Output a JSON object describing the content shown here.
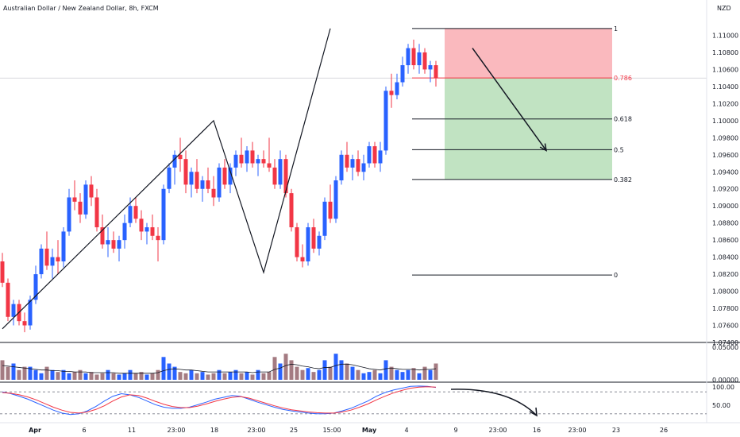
{
  "header": {
    "title": "Australian Dollar / New Zealand Dollar, 8h, FXCM"
  },
  "chart_data": [
    {
      "type": "candlestick",
      "title": "Australian Dollar / New Zealand Dollar, 8h, FXCM",
      "y_unit": "NZD",
      "ylim": [
        1.074,
        1.113
      ],
      "yticks": [
        "1.11000",
        "1.10800",
        "1.10600",
        "1.10400",
        "1.10200",
        "1.10000",
        "1.09800",
        "1.09600",
        "1.09400",
        "1.09200",
        "1.09000",
        "1.08800",
        "1.08600",
        "1.08400",
        "1.08200",
        "1.08000",
        "1.07800",
        "1.07600",
        "1.07400"
      ],
      "xticks": [
        "Apr",
        "6",
        "11",
        "23:00",
        "18",
        "23:00",
        "25",
        "15:00",
        "May",
        "4",
        "9",
        "23:00",
        "16",
        "23:00",
        "23",
        "26"
      ],
      "candles": [
        [
          1.0835,
          1.0845,
          1.0805,
          1.081
        ],
        [
          1.081,
          1.0815,
          1.0765,
          1.077
        ],
        [
          1.077,
          1.079,
          1.076,
          1.0785
        ],
        [
          1.0785,
          1.079,
          1.076,
          1.0765
        ],
        [
          1.0765,
          1.0775,
          1.0752,
          1.076
        ],
        [
          1.076,
          1.0795,
          1.0755,
          1.079
        ],
        [
          1.079,
          1.083,
          1.0785,
          1.082
        ],
        [
          1.082,
          1.0855,
          1.0815,
          1.085
        ],
        [
          1.085,
          1.087,
          1.0825,
          1.083
        ],
        [
          1.083,
          1.085,
          1.0815,
          1.084
        ],
        [
          1.084,
          1.086,
          1.082,
          1.0835
        ],
        [
          1.0835,
          1.0875,
          1.0828,
          1.087
        ],
        [
          1.087,
          1.092,
          1.0865,
          1.091
        ],
        [
          1.091,
          1.093,
          1.0895,
          1.0905
        ],
        [
          1.0905,
          1.0915,
          1.088,
          1.089
        ],
        [
          1.089,
          1.093,
          1.0885,
          1.0925
        ],
        [
          1.0925,
          1.0935,
          1.09,
          1.091
        ],
        [
          1.091,
          1.092,
          1.087,
          1.0875
        ],
        [
          1.0875,
          1.089,
          1.085,
          1.0855
        ],
        [
          1.0855,
          1.0875,
          1.084,
          1.086
        ],
        [
          1.086,
          1.087,
          1.0845,
          1.085
        ],
        [
          1.085,
          1.0865,
          1.0835,
          1.086
        ],
        [
          1.086,
          1.089,
          1.085,
          1.088
        ],
        [
          1.088,
          1.091,
          1.0875,
          1.09
        ],
        [
          1.09,
          1.091,
          1.088,
          1.0885
        ],
        [
          1.0885,
          1.0895,
          1.086,
          1.087
        ],
        [
          1.087,
          1.088,
          1.0855,
          1.0875
        ],
        [
          1.0875,
          1.089,
          1.086,
          1.0865
        ],
        [
          1.0865,
          1.0875,
          1.0835,
          1.086
        ],
        [
          1.086,
          1.0925,
          1.0855,
          1.092
        ],
        [
          1.092,
          1.095,
          1.0915,
          1.0945
        ],
        [
          1.0945,
          1.0965,
          1.0925,
          1.096
        ],
        [
          1.096,
          1.098,
          1.094,
          1.0955
        ],
        [
          1.0955,
          1.0965,
          1.0915,
          1.0925
        ],
        [
          1.0925,
          1.0945,
          1.091,
          1.094
        ],
        [
          1.094,
          1.0955,
          1.0915,
          1.092
        ],
        [
          1.092,
          1.0935,
          1.0905,
          1.093
        ],
        [
          1.093,
          1.0945,
          1.0915,
          1.092
        ],
        [
          1.092,
          1.0935,
          1.09,
          1.091
        ],
        [
          1.091,
          1.095,
          1.0905,
          1.0945
        ],
        [
          1.0945,
          1.0955,
          1.092,
          1.0925
        ],
        [
          1.0925,
          1.095,
          1.0915,
          1.0945
        ],
        [
          1.0945,
          1.0965,
          1.0935,
          1.096
        ],
        [
          1.096,
          1.098,
          1.0945,
          1.095
        ],
        [
          1.095,
          1.097,
          1.094,
          1.0965
        ],
        [
          1.0965,
          1.0975,
          1.0945,
          1.095
        ],
        [
          1.095,
          1.096,
          1.0935,
          1.0955
        ],
        [
          1.0955,
          1.0965,
          1.0945,
          1.095
        ],
        [
          1.095,
          1.098,
          1.094,
          1.0945
        ],
        [
          1.0945,
          1.0955,
          1.092,
          1.0925
        ],
        [
          1.0925,
          1.0965,
          1.092,
          1.0955
        ],
        [
          1.0955,
          1.096,
          1.091,
          1.0915
        ],
        [
          1.0915,
          1.092,
          1.087,
          1.0875
        ],
        [
          1.0875,
          1.088,
          1.0835,
          1.084
        ],
        [
          1.084,
          1.0855,
          1.0828,
          1.0835
        ],
        [
          1.0835,
          1.088,
          1.083,
          1.0875
        ],
        [
          1.0875,
          1.0885,
          1.0845,
          1.085
        ],
        [
          1.085,
          1.087,
          1.0842,
          1.0865
        ],
        [
          1.0865,
          1.091,
          1.086,
          1.0905
        ],
        [
          1.0905,
          1.0925,
          1.088,
          1.0885
        ],
        [
          1.0885,
          1.0935,
          1.088,
          1.093
        ],
        [
          1.093,
          1.0965,
          1.0925,
          1.096
        ],
        [
          1.096,
          1.0975,
          1.094,
          1.0945
        ],
        [
          1.0945,
          1.096,
          1.093,
          1.0955
        ],
        [
          1.0955,
          1.0965,
          1.0935,
          1.094
        ],
        [
          1.094,
          1.096,
          1.093,
          1.095
        ],
        [
          1.095,
          1.0975,
          1.0945,
          1.097
        ],
        [
          1.097,
          1.0975,
          1.0945,
          1.095
        ],
        [
          1.095,
          1.0975,
          1.094,
          1.0965
        ],
        [
          1.0965,
          1.104,
          1.096,
          1.1035
        ],
        [
          1.1035,
          1.1055,
          1.1015,
          1.103
        ],
        [
          1.103,
          1.1055,
          1.1025,
          1.1045
        ],
        [
          1.1045,
          1.1075,
          1.104,
          1.1065
        ],
        [
          1.1065,
          1.109,
          1.1055,
          1.1085
        ],
        [
          1.1085,
          1.1095,
          1.106,
          1.1065
        ],
        [
          1.1065,
          1.109,
          1.1055,
          1.108
        ],
        [
          1.108,
          1.1085,
          1.1055,
          1.106
        ],
        [
          1.106,
          1.107,
          1.1045,
          1.1065
        ],
        [
          1.1065,
          1.107,
          1.104,
          1.105
        ]
      ],
      "fib_levels": [
        {
          "ratio": "1",
          "price": 1.1108
        },
        {
          "ratio": "0.786",
          "price": 1.105
        },
        {
          "ratio": "0.618",
          "price": 1.1002
        },
        {
          "ratio": "0.5",
          "price": 1.0966
        },
        {
          "ratio": "0.382",
          "price": 1.0931
        },
        {
          "ratio": "0",
          "price": 1.0819
        }
      ],
      "current_price_line": 1.105,
      "swing_points": [
        [
          0,
          1.0756
        ],
        [
          38,
          1.1
        ],
        [
          47,
          1.0822
        ],
        [
          59,
          1.1108
        ]
      ],
      "forecast_arrow": {
        "from": [
          69,
          1.1085
        ],
        "to": [
          78,
          1.0965
        ]
      }
    },
    {
      "type": "bar",
      "title": "",
      "ylim": [
        0,
        0.05
      ],
      "yticks": [
        "0.05000",
        "0.00000"
      ],
      "values": [
        0.03,
        0.02,
        0.025,
        0.015,
        0.02,
        0.02,
        0.015,
        0.01,
        0.02,
        0.015,
        0.012,
        0.015,
        0.01,
        0.012,
        0.015,
        0.01,
        0.012,
        0.008,
        0.01,
        0.015,
        0.01,
        0.008,
        0.01,
        0.015,
        0.01,
        0.012,
        0.008,
        0.01,
        0.015,
        0.035,
        0.025,
        0.02,
        0.012,
        0.01,
        0.015,
        0.01,
        0.012,
        0.008,
        0.01,
        0.015,
        0.01,
        0.012,
        0.015,
        0.01,
        0.012,
        0.008,
        0.015,
        0.01,
        0.012,
        0.035,
        0.025,
        0.04,
        0.03,
        0.02,
        0.015,
        0.018,
        0.012,
        0.015,
        0.03,
        0.02,
        0.04,
        0.03,
        0.025,
        0.02,
        0.015,
        0.01,
        0.012,
        0.015,
        0.01,
        0.03,
        0.02,
        0.015,
        0.012,
        0.015,
        0.018,
        0.01,
        0.02,
        0.015,
        0.025
      ],
      "ma_values": [
        0.022,
        0.021,
        0.02,
        0.019,
        0.018,
        0.017,
        0.016,
        0.015,
        0.015,
        0.014,
        0.014,
        0.013,
        0.013,
        0.012,
        0.012,
        0.012,
        0.011,
        0.011,
        0.011,
        0.011,
        0.011,
        0.01,
        0.01,
        0.01,
        0.01,
        0.01,
        0.01,
        0.01,
        0.011,
        0.014,
        0.016,
        0.017,
        0.016,
        0.015,
        0.015,
        0.014,
        0.013,
        0.012,
        0.012,
        0.012,
        0.012,
        0.012,
        0.012,
        0.012,
        0.012,
        0.011,
        0.012,
        0.012,
        0.012,
        0.016,
        0.018,
        0.022,
        0.024,
        0.023,
        0.021,
        0.02,
        0.018,
        0.017,
        0.019,
        0.019,
        0.022,
        0.024,
        0.024,
        0.023,
        0.021,
        0.019,
        0.017,
        0.016,
        0.015,
        0.017,
        0.018,
        0.017,
        0.016,
        0.016,
        0.016,
        0.015,
        0.016,
        0.016,
        0.017
      ]
    },
    {
      "type": "line",
      "title": "",
      "ylim": [
        0,
        100
      ],
      "yticks": [
        "100.00",
        "50.00"
      ],
      "series": [
        {
          "color": "#2962ff",
          "values": [
            80,
            75,
            68,
            60,
            50,
            40,
            30,
            22,
            18,
            20,
            28,
            40,
            55,
            68,
            75,
            72,
            65,
            55,
            45,
            38,
            35,
            35,
            38,
            45,
            52,
            60,
            65,
            70,
            68,
            60,
            52,
            45,
            38,
            32,
            28,
            25,
            22,
            20,
            20,
            22,
            28,
            35,
            45,
            55,
            68,
            78,
            85,
            90,
            95,
            96,
            95,
            92
          ]
        },
        {
          "color": "#f23645",
          "values": [
            78,
            76,
            72,
            66,
            58,
            48,
            38,
            30,
            24,
            22,
            25,
            32,
            42,
            55,
            66,
            72,
            70,
            63,
            54,
            46,
            40,
            37,
            37,
            41,
            47,
            54,
            60,
            65,
            67,
            63,
            56,
            49,
            42,
            36,
            31,
            28,
            25,
            23,
            22,
            22,
            25,
            30,
            38,
            47,
            58,
            68,
            77,
            84,
            90,
            93,
            94,
            93
          ]
        }
      ],
      "levels": [
        80,
        20
      ]
    }
  ]
}
